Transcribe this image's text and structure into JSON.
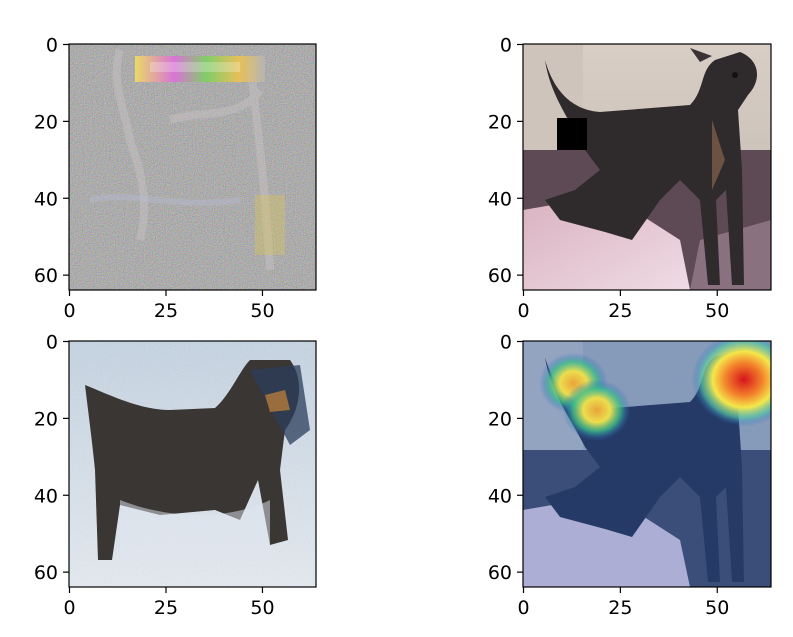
{
  "chart_data": [
    {
      "type": "image",
      "content": "gradient-saliency-map",
      "xlim": [
        0,
        64
      ],
      "ylim": [
        64,
        0
      ],
      "xticks": [
        0,
        25,
        50
      ],
      "yticks": [
        0,
        20,
        40,
        60
      ],
      "xtick_labels": [
        "0",
        "25",
        "50"
      ],
      "ytick_labels": [
        "0",
        "20",
        "40",
        "60"
      ]
    },
    {
      "type": "image",
      "content": "dog-photo-occluded",
      "xlim": [
        0,
        64
      ],
      "ylim": [
        64,
        0
      ],
      "xticks": [
        0,
        25,
        50
      ],
      "yticks": [
        0,
        20,
        40,
        60
      ],
      "xtick_labels": [
        "0",
        "25",
        "50"
      ],
      "ytick_labels": [
        "0",
        "20",
        "40",
        "60"
      ]
    },
    {
      "type": "image",
      "content": "inverted-dog-reconstruction",
      "xlim": [
        0,
        64
      ],
      "ylim": [
        64,
        0
      ],
      "xticks": [
        0,
        25,
        50
      ],
      "yticks": [
        0,
        20,
        40,
        60
      ],
      "xtick_labels": [
        "0",
        "25",
        "50"
      ],
      "ytick_labels": [
        "0",
        "20",
        "40",
        "60"
      ]
    },
    {
      "type": "heatmap",
      "content": "dog-photo-with-heatmap-overlay",
      "xlim": [
        0,
        64
      ],
      "ylim": [
        64,
        0
      ],
      "xticks": [
        0,
        25,
        50
      ],
      "yticks": [
        0,
        20,
        40,
        60
      ],
      "xtick_labels": [
        "0",
        "25",
        "50"
      ],
      "ytick_labels": [
        "0",
        "20",
        "40",
        "60"
      ],
      "hotspots": [
        {
          "x": 13,
          "y": 11,
          "level": "medium"
        },
        {
          "x": 19,
          "y": 18,
          "level": "medium"
        },
        {
          "x": 57,
          "y": 10,
          "level": "high"
        }
      ]
    }
  ]
}
